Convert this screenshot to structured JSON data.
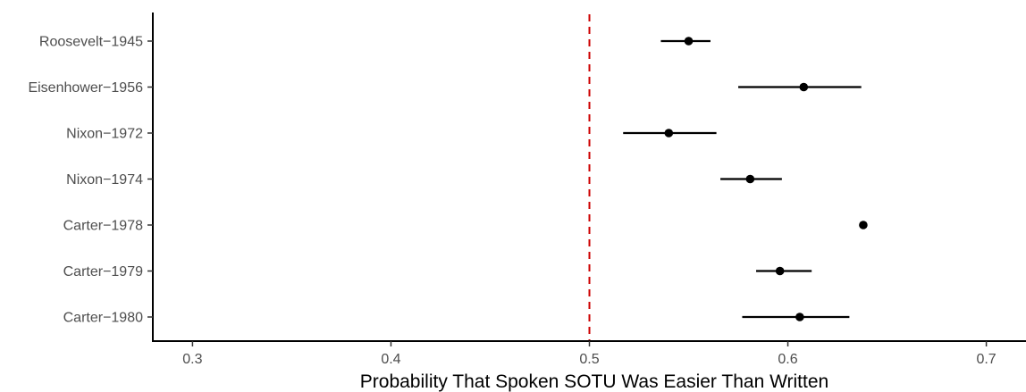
{
  "chart_data": {
    "type": "scatter",
    "subtype": "point-range",
    "xlabel": "Probability That Spoken SOTU Was Easier Than Written",
    "ylabel": "",
    "xlim": [
      0.28,
      0.72
    ],
    "x_ticks": [
      0.3,
      0.4,
      0.5,
      0.6,
      0.7
    ],
    "x_tick_labels": [
      "0.3",
      "0.4",
      "0.5",
      "0.6",
      "0.7"
    ],
    "grid": false,
    "legend": "none",
    "reference_line": {
      "x": 0.5,
      "style": "dashed",
      "color": "#cc0000"
    },
    "point_color": "#000000",
    "rows": [
      {
        "label": "Roosevelt−1945",
        "estimate": 0.55,
        "lower": 0.536,
        "upper": 0.561
      },
      {
        "label": "Eisenhower−1956",
        "estimate": 0.608,
        "lower": 0.575,
        "upper": 0.637
      },
      {
        "label": "Nixon−1972",
        "estimate": 0.54,
        "lower": 0.517,
        "upper": 0.564
      },
      {
        "label": "Nixon−1974",
        "estimate": 0.581,
        "lower": 0.566,
        "upper": 0.597
      },
      {
        "label": "Carter−1978",
        "estimate": 0.638,
        "lower": 0.638,
        "upper": 0.638
      },
      {
        "label": "Carter−1979",
        "estimate": 0.596,
        "lower": 0.584,
        "upper": 0.612
      },
      {
        "label": "Carter−1980",
        "estimate": 0.606,
        "lower": 0.577,
        "upper": 0.631
      }
    ]
  }
}
